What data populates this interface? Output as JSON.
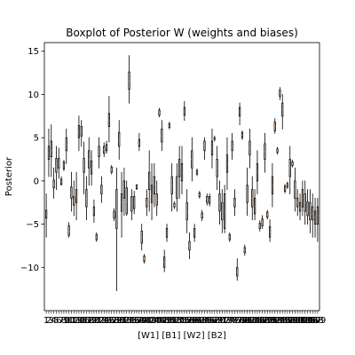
{
  "chart_data": {
    "type": "boxplot",
    "title": "Boxplot of Posterior W (weights and biases)",
    "xlabel": "[W1] [B1] [W2] [B2]",
    "ylabel": "Posterior",
    "ylim": [
      -15,
      16
    ],
    "yticks": [
      -10,
      -5,
      0,
      5,
      10,
      15
    ],
    "grid": false,
    "colors": {
      "box": "#000000",
      "median": "#ff7f0e",
      "flier": "#000000",
      "background": "#ffffff"
    },
    "xticks": [
      "1",
      "2",
      "3",
      "4",
      "5",
      "6",
      "7",
      "8",
      "9",
      "10",
      "11",
      "12",
      "13",
      "14",
      "15",
      "16",
      "17",
      "18",
      "19",
      "20",
      "21",
      "22",
      "23",
      "24",
      "25",
      "26",
      "27",
      "28",
      "29",
      "30",
      "31",
      "32",
      "33",
      "34",
      "35",
      "36",
      "37",
      "38",
      "39",
      "40",
      "41",
      "42",
      "43",
      "44",
      "45",
      "46",
      "47",
      "48",
      "49",
      "50",
      "51",
      "52",
      "53",
      "54",
      "55",
      "56",
      "57",
      "58",
      "59",
      "60",
      "61",
      "62",
      "63",
      "64",
      "65",
      "66",
      "67",
      "68",
      "69",
      "70",
      "71",
      "72",
      "73",
      "74",
      "75",
      "76",
      "77",
      "78",
      "79",
      "80",
      "81",
      "82",
      "83",
      "84",
      "85",
      "86",
      "87",
      "88",
      "89",
      "90",
      "91",
      "92",
      "93",
      "94",
      "95",
      "96",
      "97",
      "98",
      "99",
      "100",
      "101",
      "102",
      "103",
      "104",
      "105",
      "106",
      "107",
      "108",
      "109"
    ],
    "boxes": [
      {
        "x": 1,
        "q1": -4.3,
        "median": -3.9,
        "q3": -3.4,
        "wlo": -6.5,
        "whi": -1.5
      },
      {
        "x": 2,
        "q1": 2.5,
        "median": 3.2,
        "q3": 4.0,
        "wlo": 0.5,
        "whi": 6.0
      },
      {
        "x": 3,
        "q1": 2.8,
        "median": 3.5,
        "q3": 4.6,
        "wlo": 0.5,
        "whi": 6.5
      },
      {
        "x": 4,
        "q1": -0.8,
        "median": -0.4,
        "q3": 0.1,
        "wlo": -2.0,
        "whi": 1.5
      },
      {
        "x": 5,
        "q1": 1.0,
        "median": 1.7,
        "q3": 2.6,
        "wlo": -1.0,
        "whi": 4.0
      },
      {
        "x": 6,
        "q1": 1.5,
        "median": 2.0,
        "q3": 2.6,
        "wlo": 0.3,
        "whi": 3.8
      },
      {
        "x": 7,
        "q1": -0.4,
        "median": -0.1,
        "q3": 0.2,
        "wlo": -0.5,
        "whi": 0.5
      },
      {
        "x": 8,
        "q1": 1.4,
        "median": 1.8,
        "q3": 2.2,
        "wlo": 1.2,
        "whi": 2.4
      },
      {
        "x": 9,
        "q1": 3.5,
        "median": 4.2,
        "q3": 5.0,
        "wlo": 2.0,
        "whi": 6.0
      },
      {
        "x": 10,
        "q1": -6.3,
        "median": -5.8,
        "q3": -5.2,
        "wlo": -6.5,
        "whi": -4.8
      },
      {
        "x": 11,
        "q1": -2.0,
        "median": -1.4,
        "q3": -0.7,
        "wlo": -3.5,
        "whi": 1.0
      },
      {
        "x": 12,
        "q1": -2.8,
        "median": -2.3,
        "q3": -1.8,
        "wlo": -4.0,
        "whi": 0.0
      },
      {
        "x": 13,
        "q1": -2.5,
        "median": -1.8,
        "q3": -1.0,
        "wlo": -4.5,
        "whi": 1.0
      },
      {
        "x": 14,
        "q1": 5.0,
        "median": 5.6,
        "q3": 6.4,
        "wlo": 3.5,
        "whi": 7.5
      },
      {
        "x": 15,
        "q1": 5.2,
        "median": 5.8,
        "q3": 6.3,
        "wlo": 4.0,
        "whi": 7.0
      },
      {
        "x": 16,
        "q1": 1.0,
        "median": 1.8,
        "q3": 2.6,
        "wlo": -1.5,
        "whi": 4.5
      },
      {
        "x": 17,
        "q1": -3.0,
        "median": -2.0,
        "q3": -1.0,
        "wlo": -4.5,
        "whi": 0.5
      },
      {
        "x": 18,
        "q1": 1.5,
        "median": 2.5,
        "q3": 3.5,
        "wlo": -0.5,
        "whi": 5.0
      },
      {
        "x": 19,
        "q1": 0.8,
        "median": 1.5,
        "q3": 2.3,
        "wlo": -0.5,
        "whi": 3.5
      },
      {
        "x": 20,
        "q1": -4.0,
        "median": -3.5,
        "q3": -3.0,
        "wlo": -4.8,
        "whi": -2.2
      },
      {
        "x": 21,
        "q1": -6.8,
        "median": -6.5,
        "q3": -6.2,
        "wlo": -7.0,
        "whi": -6.0
      },
      {
        "x": 22,
        "q1": 2.8,
        "median": 3.4,
        "q3": 4.0,
        "wlo": 1.5,
        "whi": 5.0
      },
      {
        "x": 23,
        "q1": -1.5,
        "median": -1.0,
        "q3": -0.5,
        "wlo": -2.5,
        "whi": 0.5
      },
      {
        "x": 24,
        "q1": 3.2,
        "median": 3.6,
        "q3": 4.0,
        "wlo": 2.8,
        "whi": 4.4
      },
      {
        "x": 25,
        "q1": 3.5,
        "median": 3.9,
        "q3": 4.2,
        "wlo": 3.2,
        "whi": 4.6
      },
      {
        "x": 26,
        "q1": 6.3,
        "median": 7.0,
        "q3": 7.8,
        "wlo": 4.5,
        "whi": 9.8
      },
      {
        "x": 27,
        "q1": 1.0,
        "median": 1.3,
        "q3": 1.6,
        "wlo": 0.8,
        "whi": 1.8
      },
      {
        "x": 28,
        "q1": -4.3,
        "median": -3.9,
        "q3": -3.5,
        "wlo": -4.6,
        "whi": -3.2
      },
      {
        "x": 29,
        "q1": -5.5,
        "median": -3.5,
        "q3": -1.0,
        "wlo": -12.7,
        "whi": 1.5
      },
      {
        "x": 30,
        "q1": 4.0,
        "median": 4.8,
        "q3": 5.6,
        "wlo": 2.5,
        "whi": 7.0
      },
      {
        "x": 31,
        "q1": -3.5,
        "median": -2.5,
        "q3": -1.5,
        "wlo": -6.5,
        "whi": 1.0
      },
      {
        "x": 32,
        "q1": -2.0,
        "median": -1.0,
        "q3": 0.0,
        "wlo": -4.0,
        "whi": 1.5
      },
      {
        "x": 33,
        "q1": -3.8,
        "median": -2.4,
        "q3": -0.8,
        "wlo": -4.0,
        "whi": 0.0
      },
      {
        "x": 34,
        "q1": 10.6,
        "median": 11.6,
        "q3": 12.6,
        "wlo": 9.0,
        "whi": 14.5
      },
      {
        "x": 35,
        "q1": -3.5,
        "median": -2.7,
        "q3": -1.8,
        "wlo": -4.5,
        "whi": -1.0
      },
      {
        "x": 36,
        "q1": -3.2,
        "median": -2.5,
        "q3": -1.8,
        "wlo": -3.8,
        "whi": -1.2
      },
      {
        "x": 37,
        "q1": -0.9,
        "median": -0.7,
        "q3": -0.5,
        "wlo": -1.0,
        "whi": -0.4
      },
      {
        "x": 38,
        "q1": 4.0,
        "median": 4.3,
        "q3": 4.8,
        "wlo": 3.5,
        "whi": 5.5
      },
      {
        "x": 39,
        "q1": -7.2,
        "median": -6.5,
        "q3": -5.8,
        "wlo": -8.0,
        "whi": -5.0
      },
      {
        "x": 40,
        "q1": -9.3,
        "median": -9.0,
        "q3": -8.7,
        "wlo": -9.5,
        "whi": -8.5
      },
      {
        "x": 41,
        "q1": -3.0,
        "median": -2.5,
        "q3": -2.0,
        "wlo": -4.0,
        "whi": -1.0
      },
      {
        "x": 42,
        "q1": -1.0,
        "median": 0.0,
        "q3": 1.0,
        "wlo": -3.5,
        "whi": 3.5
      },
      {
        "x": 43,
        "q1": -2.5,
        "median": -1.5,
        "q3": -0.5,
        "wlo": -4.5,
        "whi": 2.0
      },
      {
        "x": 44,
        "q1": -1.5,
        "median": -0.5,
        "q3": 0.5,
        "wlo": -3.0,
        "whi": 2.0
      },
      {
        "x": 45,
        "q1": -2.8,
        "median": -2.2,
        "q3": -1.5,
        "wlo": -4.0,
        "whi": 0.0
      },
      {
        "x": 46,
        "q1": 7.6,
        "median": 7.9,
        "q3": 8.2,
        "wlo": 7.4,
        "whi": 8.4
      },
      {
        "x": 47,
        "q1": 4.5,
        "median": 5.2,
        "q3": 6.0,
        "wlo": 3.5,
        "whi": 7.0
      },
      {
        "x": 48,
        "q1": -10.0,
        "median": -9.4,
        "q3": -8.8,
        "wlo": -10.5,
        "whi": -8.0
      },
      {
        "x": 49,
        "q1": -6.5,
        "median": -6.0,
        "q3": -5.5,
        "wlo": -7.0,
        "whi": -5.0
      },
      {
        "x": 50,
        "q1": 6.2,
        "median": 6.4,
        "q3": 6.6,
        "wlo": 6.0,
        "whi": 6.8
      },
      {
        "x": 51,
        "q1": -1.5,
        "median": -0.5,
        "q3": 0.5,
        "wlo": -3.5,
        "whi": 2.0
      },
      {
        "x": 52,
        "q1": -3.0,
        "median": -2.8,
        "q3": -2.6,
        "wlo": -3.2,
        "whi": -2.4
      },
      {
        "x": 53,
        "q1": -2.0,
        "median": -1.0,
        "q3": 0.5,
        "wlo": -3.5,
        "whi": 2.0
      },
      {
        "x": 54,
        "q1": 0.5,
        "median": 1.5,
        "q3": 2.5,
        "wlo": -2.0,
        "whi": 4.0
      },
      {
        "x": 55,
        "q1": 0.0,
        "median": 1.0,
        "q3": 2.0,
        "wlo": -1.5,
        "whi": 4.0
      },
      {
        "x": 56,
        "q1": 7.6,
        "median": 8.0,
        "q3": 8.5,
        "wlo": 7.0,
        "whi": 9.2
      },
      {
        "x": 57,
        "q1": -4.5,
        "median": -3.5,
        "q3": -2.5,
        "wlo": -6.0,
        "whi": -1.0
      },
      {
        "x": 58,
        "q1": -8.0,
        "median": -7.5,
        "q3": -7.0,
        "wlo": -9.0,
        "whi": -6.0
      },
      {
        "x": 59,
        "q1": 1.5,
        "median": 2.5,
        "q3": 3.5,
        "wlo": 0.0,
        "whi": 5.0
      },
      {
        "x": 60,
        "q1": -6.5,
        "median": -6.0,
        "q3": -5.5,
        "wlo": -7.0,
        "whi": -5.0
      },
      {
        "x": 61,
        "q1": 0.8,
        "median": 1.0,
        "q3": 1.2,
        "wlo": 0.6,
        "whi": 1.4
      },
      {
        "x": 62,
        "q1": -1.8,
        "median": -1.6,
        "q3": -1.4,
        "wlo": -2.0,
        "whi": -1.2
      },
      {
        "x": 63,
        "q1": -4.3,
        "median": -4.0,
        "q3": -3.7,
        "wlo": -4.6,
        "whi": -3.4
      },
      {
        "x": 64,
        "q1": 3.5,
        "median": 4.1,
        "q3": 4.6,
        "wlo": 2.5,
        "whi": 5.0
      },
      {
        "x": 65,
        "q1": -2.5,
        "median": -2.1,
        "q3": -1.8,
        "wlo": -2.8,
        "whi": -1.5
      },
      {
        "x": 66,
        "q1": -2.6,
        "median": -2.2,
        "q3": -1.8,
        "wlo": -2.9,
        "whi": -1.5
      },
      {
        "x": 67,
        "q1": 3.0,
        "median": 3.8,
        "q3": 4.6,
        "wlo": 1.5,
        "whi": 6.0
      },
      {
        "x": 68,
        "q1": 4.8,
        "median": 4.9,
        "q3": 5.0,
        "wlo": 4.6,
        "whi": 5.2
      },
      {
        "x": 69,
        "q1": 0.5,
        "median": 1.5,
        "q3": 2.5,
        "wlo": -1.0,
        "whi": 4.0
      },
      {
        "x": 70,
        "q1": -3.5,
        "median": -2.5,
        "q3": -1.5,
        "wlo": -5.0,
        "whi": 0.0
      },
      {
        "x": 71,
        "q1": -4.5,
        "median": -3.5,
        "q3": -2.5,
        "wlo": -6.0,
        "whi": -1.0
      },
      {
        "x": 72,
        "q1": -5.5,
        "median": -3.5,
        "q3": -1.5,
        "wlo": -6.0,
        "whi": -0.5
      },
      {
        "x": 73,
        "q1": 1.0,
        "median": 2.0,
        "q3": 3.0,
        "wlo": -1.0,
        "whi": 5.0
      },
      {
        "x": 74,
        "q1": -6.8,
        "median": -6.5,
        "q3": -6.2,
        "wlo": -7.0,
        "whi": -6.0
      },
      {
        "x": 75,
        "q1": 3.5,
        "median": 4.0,
        "q3": 4.6,
        "wlo": 2.5,
        "whi": 5.5
      },
      {
        "x": 76,
        "q1": -3.0,
        "median": -2.5,
        "q3": -2.0,
        "wlo": -4.0,
        "whi": -1.0
      },
      {
        "x": 77,
        "q1": -11.0,
        "median": -10.5,
        "q3": -10.0,
        "wlo": -11.5,
        "whi": -9.0
      },
      {
        "x": 78,
        "q1": 7.5,
        "median": 8.0,
        "q3": 8.5,
        "wlo": 6.5,
        "whi": 9.0
      },
      {
        "x": 79,
        "q1": 5.0,
        "median": 5.3,
        "q3": 5.6,
        "wlo": 4.8,
        "whi": 5.8
      },
      {
        "x": 80,
        "q1": -8.3,
        "median": -8.0,
        "q3": -7.7,
        "wlo": -8.6,
        "whi": -7.4
      },
      {
        "x": 81,
        "q1": -2.5,
        "median": -1.5,
        "q3": -0.5,
        "wlo": -4.0,
        "whi": 1.5
      },
      {
        "x": 82,
        "q1": 3.0,
        "median": 3.8,
        "q3": 4.6,
        "wlo": 1.5,
        "whi": 6.0
      },
      {
        "x": 83,
        "q1": -3.0,
        "median": -2.0,
        "q3": -1.0,
        "wlo": -4.5,
        "whi": 0.5
      },
      {
        "x": 84,
        "q1": -3.8,
        "median": -2.9,
        "q3": -2.0,
        "wlo": -4.5,
        "whi": -1.0
      },
      {
        "x": 85,
        "q1": 0.0,
        "median": 1.0,
        "q3": 2.0,
        "wlo": -1.5,
        "whi": 3.5
      },
      {
        "x": 86,
        "q1": -5.5,
        "median": -5.2,
        "q3": -4.9,
        "wlo": -5.8,
        "whi": -4.6
      },
      {
        "x": 87,
        "q1": -5.2,
        "median": -4.8,
        "q3": -4.4,
        "wlo": -5.5,
        "whi": -4.0
      },
      {
        "x": 88,
        "q1": 2.5,
        "median": 3.4,
        "q3": 4.3,
        "wlo": 1.0,
        "whi": 5.5
      },
      {
        "x": 89,
        "q1": -4.2,
        "median": -3.9,
        "q3": -3.6,
        "wlo": -4.4,
        "whi": -3.4
      },
      {
        "x": 90,
        "q1": -6.5,
        "median": -5.9,
        "q3": -5.3,
        "wlo": -7.0,
        "whi": -4.5
      },
      {
        "x": 91,
        "q1": -1.5,
        "median": -0.5,
        "q3": 0.5,
        "wlo": -3.0,
        "whi": 2.0
      },
      {
        "x": 92,
        "q1": 5.8,
        "median": 6.3,
        "q3": 6.8,
        "wlo": 5.5,
        "whi": 7.2
      },
      {
        "x": 93,
        "q1": 3.3,
        "median": 3.5,
        "q3": 3.7,
        "wlo": 3.1,
        "whi": 3.9
      },
      {
        "x": 94,
        "q1": 9.8,
        "median": 10.2,
        "q3": 10.5,
        "wlo": 9.4,
        "whi": 10.8
      },
      {
        "x": 95,
        "q1": 7.5,
        "median": 8.3,
        "q3": 9.0,
        "wlo": 6.0,
        "whi": 10.0
      },
      {
        "x": 96,
        "q1": -1.2,
        "median": -0.9,
        "q3": -0.6,
        "wlo": -1.4,
        "whi": -0.4
      },
      {
        "x": 97,
        "q1": -0.7,
        "median": -0.5,
        "q3": -0.3,
        "wlo": -0.9,
        "whi": -0.1
      },
      {
        "x": 98,
        "q1": 0.5,
        "median": 1.5,
        "q3": 2.5,
        "wlo": -1.5,
        "whi": 4.0
      },
      {
        "x": 99,
        "q1": 1.8,
        "median": 2.0,
        "q3": 2.2,
        "wlo": 1.6,
        "whi": 2.4
      },
      {
        "x": 100,
        "q1": -2.0,
        "median": -1.0,
        "q3": 0.0,
        "wlo": -3.5,
        "whi": 1.5
      },
      {
        "x": 101,
        "q1": -3.0,
        "median": -2.5,
        "q3": -2.0,
        "wlo": -4.0,
        "whi": -1.0
      },
      {
        "x": 102,
        "q1": -3.5,
        "median": -3.0,
        "q3": -2.5,
        "wlo": -4.5,
        "whi": -1.5
      },
      {
        "x": 103,
        "q1": -3.0,
        "median": -2.0,
        "q3": -1.0,
        "wlo": -4.0,
        "whi": 0.0
      },
      {
        "x": 104,
        "q1": -3.5,
        "median": -2.5,
        "q3": -1.5,
        "wlo": -5.0,
        "whi": 0.0
      },
      {
        "x": 105,
        "q1": -4.0,
        "median": -3.2,
        "q3": -2.4,
        "wlo": -5.0,
        "whi": -1.0
      },
      {
        "x": 106,
        "q1": -4.5,
        "median": -3.5,
        "q3": -2.5,
        "wlo": -6.0,
        "whi": -1.0
      },
      {
        "x": 107,
        "q1": -4.5,
        "median": -3.8,
        "q3": -3.0,
        "wlo": -6.5,
        "whi": -1.5
      },
      {
        "x": 108,
        "q1": -5.0,
        "median": -4.2,
        "q3": -3.5,
        "wlo": -6.5,
        "whi": -2.0
      },
      {
        "x": 109,
        "q1": -5.0,
        "median": -4.0,
        "q3": -3.0,
        "wlo": -7.0,
        "whi": -2.0
      }
    ]
  }
}
